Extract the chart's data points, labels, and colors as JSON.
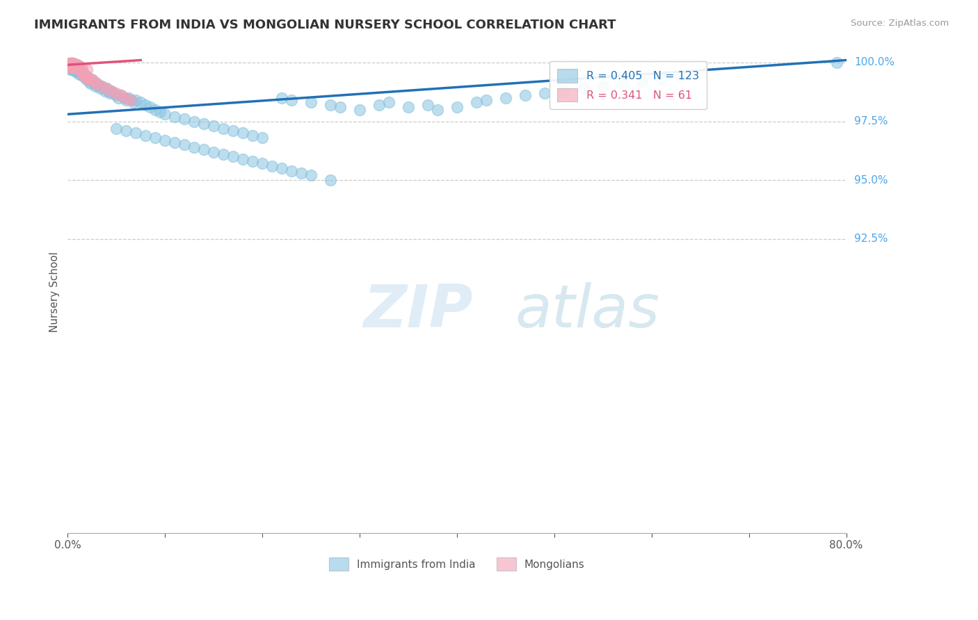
{
  "title": "IMMIGRANTS FROM INDIA VS MONGOLIAN NURSERY SCHOOL CORRELATION CHART",
  "source_text": "Source: ZipAtlas.com",
  "ylabel": "Nursery School",
  "xlim": [
    0.0,
    0.8
  ],
  "ylim": [
    0.8,
    1.005
  ],
  "xticks": [
    0.0,
    0.1,
    0.2,
    0.3,
    0.4,
    0.5,
    0.6,
    0.7,
    0.8
  ],
  "xticklabels": [
    "0.0%",
    "",
    "",
    "",
    "",
    "",
    "",
    "",
    "80.0%"
  ],
  "yticks": [
    0.8,
    0.925,
    0.95,
    0.975,
    1.0
  ],
  "yticklabels_right": [
    "",
    "92.5%",
    "95.0%",
    "97.5%",
    "100.0%"
  ],
  "legend_blue_label": "Immigrants from India",
  "legend_pink_label": "Mongolians",
  "blue_R": 0.405,
  "blue_N": 123,
  "pink_R": 0.341,
  "pink_N": 61,
  "blue_color": "#89c4e1",
  "pink_color": "#f4a0b5",
  "blue_line_color": "#2171b5",
  "pink_line_color": "#e0537a",
  "watermark_zip": "ZIP",
  "watermark_atlas": "atlas",
  "blue_trend_x0": 0.0,
  "blue_trend_y0": 0.978,
  "blue_trend_x1": 0.8,
  "blue_trend_y1": 1.001,
  "pink_trend_x0": 0.0,
  "pink_trend_y0": 0.999,
  "pink_trend_x1": 0.075,
  "pink_trend_y1": 1.001,
  "blue_scatter_x": [
    0.001,
    0.001,
    0.002,
    0.002,
    0.003,
    0.003,
    0.003,
    0.004,
    0.004,
    0.005,
    0.005,
    0.005,
    0.006,
    0.006,
    0.007,
    0.007,
    0.008,
    0.008,
    0.009,
    0.009,
    0.01,
    0.01,
    0.011,
    0.012,
    0.012,
    0.013,
    0.014,
    0.015,
    0.016,
    0.017,
    0.018,
    0.019,
    0.02,
    0.021,
    0.022,
    0.023,
    0.025,
    0.026,
    0.027,
    0.028,
    0.03,
    0.032,
    0.033,
    0.035,
    0.037,
    0.038,
    0.04,
    0.042,
    0.043,
    0.045,
    0.047,
    0.05,
    0.052,
    0.055,
    0.058,
    0.06,
    0.063,
    0.065,
    0.068,
    0.07,
    0.075,
    0.08,
    0.085,
    0.09,
    0.095,
    0.1,
    0.11,
    0.12,
    0.13,
    0.14,
    0.15,
    0.16,
    0.17,
    0.18,
    0.19,
    0.2,
    0.22,
    0.23,
    0.25,
    0.27,
    0.28,
    0.3,
    0.32,
    0.33,
    0.35,
    0.37,
    0.38,
    0.4,
    0.42,
    0.43,
    0.45,
    0.47,
    0.49,
    0.51,
    0.53,
    0.55,
    0.57,
    0.59,
    0.61,
    0.63,
    0.05,
    0.06,
    0.07,
    0.08,
    0.09,
    0.1,
    0.11,
    0.12,
    0.13,
    0.14,
    0.15,
    0.16,
    0.17,
    0.18,
    0.19,
    0.2,
    0.21,
    0.22,
    0.23,
    0.24,
    0.25,
    0.27,
    0.79
  ],
  "blue_scatter_y": [
    0.999,
    0.998,
    0.999,
    0.998,
    0.999,
    0.998,
    0.997,
    0.999,
    0.997,
    0.999,
    0.998,
    0.997,
    0.998,
    0.997,
    0.998,
    0.997,
    0.998,
    0.996,
    0.997,
    0.996,
    0.998,
    0.996,
    0.997,
    0.996,
    0.995,
    0.996,
    0.995,
    0.996,
    0.994,
    0.995,
    0.994,
    0.993,
    0.994,
    0.993,
    0.992,
    0.991,
    0.993,
    0.992,
    0.991,
    0.99,
    0.991,
    0.99,
    0.989,
    0.99,
    0.989,
    0.988,
    0.989,
    0.988,
    0.987,
    0.988,
    0.987,
    0.986,
    0.985,
    0.986,
    0.985,
    0.984,
    0.985,
    0.984,
    0.983,
    0.984,
    0.983,
    0.982,
    0.981,
    0.98,
    0.979,
    0.978,
    0.977,
    0.976,
    0.975,
    0.974,
    0.973,
    0.972,
    0.971,
    0.97,
    0.969,
    0.968,
    0.985,
    0.984,
    0.983,
    0.982,
    0.981,
    0.98,
    0.982,
    0.983,
    0.981,
    0.982,
    0.98,
    0.981,
    0.983,
    0.984,
    0.985,
    0.986,
    0.987,
    0.988,
    0.989,
    0.99,
    0.991,
    0.992,
    0.993,
    0.994,
    0.972,
    0.971,
    0.97,
    0.969,
    0.968,
    0.967,
    0.966,
    0.965,
    0.964,
    0.963,
    0.962,
    0.961,
    0.96,
    0.959,
    0.958,
    0.957,
    0.956,
    0.955,
    0.954,
    0.953,
    0.952,
    0.95,
    1.0
  ],
  "pink_scatter_x": [
    0.0005,
    0.001,
    0.001,
    0.001,
    0.002,
    0.002,
    0.002,
    0.002,
    0.003,
    0.003,
    0.003,
    0.003,
    0.004,
    0.004,
    0.004,
    0.005,
    0.005,
    0.005,
    0.006,
    0.006,
    0.006,
    0.007,
    0.007,
    0.008,
    0.008,
    0.009,
    0.009,
    0.01,
    0.01,
    0.011,
    0.012,
    0.013,
    0.014,
    0.015,
    0.016,
    0.017,
    0.018,
    0.019,
    0.02,
    0.022,
    0.025,
    0.027,
    0.03,
    0.035,
    0.04,
    0.045,
    0.05,
    0.055,
    0.06,
    0.065,
    0.003,
    0.004,
    0.005,
    0.006,
    0.007,
    0.008,
    0.009,
    0.01,
    0.012,
    0.015,
    0.02
  ],
  "pink_scatter_y": [
    0.9995,
    0.9998,
    0.9992,
    0.9985,
    0.9998,
    0.9992,
    0.9985,
    0.998,
    0.9998,
    0.9992,
    0.9985,
    0.998,
    0.9998,
    0.9992,
    0.9985,
    0.9998,
    0.9992,
    0.9985,
    0.9992,
    0.9985,
    0.998,
    0.9992,
    0.9985,
    0.9992,
    0.9985,
    0.9985,
    0.998,
    0.9985,
    0.998,
    0.9975,
    0.997,
    0.9965,
    0.996,
    0.9955,
    0.995,
    0.9945,
    0.994,
    0.9935,
    0.9935,
    0.993,
    0.9925,
    0.992,
    0.991,
    0.99,
    0.989,
    0.988,
    0.987,
    0.986,
    0.985,
    0.984,
    0.9998,
    0.9998,
    0.9998,
    0.9998,
    0.9992,
    0.9992,
    0.9992,
    0.9992,
    0.9985,
    0.998,
    0.997
  ]
}
